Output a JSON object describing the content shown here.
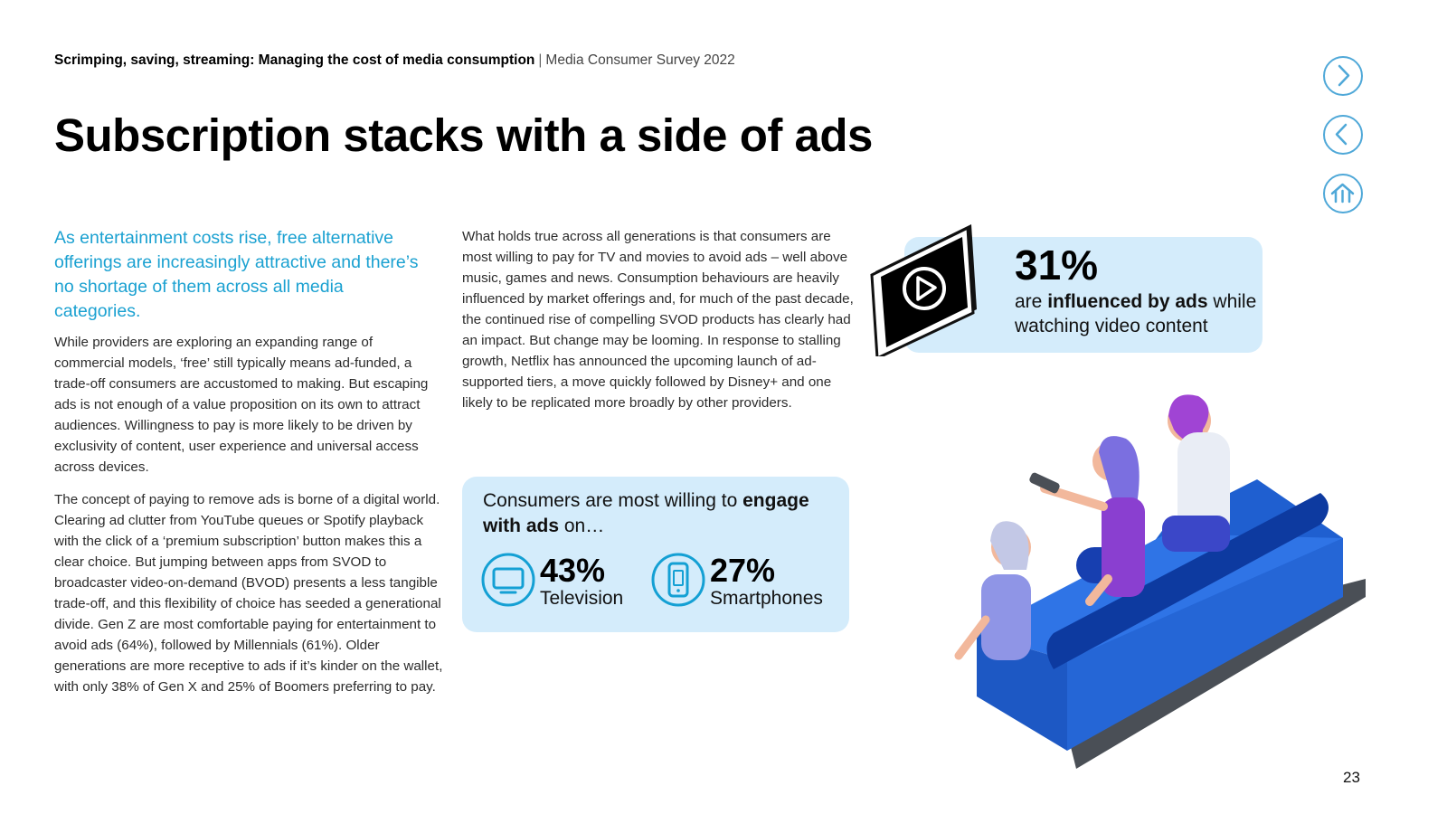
{
  "header": {
    "report_title": "Scrimping, saving, streaming: Managing the cost of media consumption",
    "separator": "|",
    "survey": "Media Consumer Survey 2022"
  },
  "page_title": "Subscription stacks with a side of ads",
  "nav": {
    "next_icon": "chevron-right-icon",
    "prev_icon": "chevron-left-icon",
    "home_icon": "home-icon",
    "accent_color": "#4fa8d8"
  },
  "lead": "As entertainment costs rise, free alternative offerings are increasingly attractive and there’s no shortage of them across all media categories.",
  "paragraphs": [
    "While providers are exploring an expanding range of commercial models, ‘free’ still typically means ad-funded, a trade-off consumers are accustomed to making. But escaping ads is not enough of a value proposition on its own to attract audiences. Willingness to pay is more likely to be driven by exclusivity of content, user experience and universal access across devices.",
    "The concept of paying to remove ads is borne of a digital world. Clearing ad clutter from YouTube queues or Spotify playback with the click of a ‘premium subscription’ button makes this a clear choice. But jumping between apps from SVOD to broadcaster video-on-demand (BVOD) presents a less tangible trade-off, and this flexibility of choice has seeded a generational divide. Gen Z are most comfortable paying for entertainment to avoid ads (64%), followed by Millennials (61%). Older generations are more receptive to ads if it’s kinder on the wallet, with only 38% of Gen X and 25% of Boomers preferring to pay.",
    "What holds true across all generations is that consumers are most willing to pay for TV and movies to avoid ads – well above music, games and news. Consumption behaviours are heavily influenced by market offerings and, for much of the past decade, the continued rise of compelling SVOD products has clearly had an impact. But change may be looming. In response to stalling growth, Netflix has announced the upcoming launch of ad-supported tiers, a move quickly followed by Disney+ and one likely to be replicated more broadly by other providers."
  ],
  "video_callout": {
    "percent": "31%",
    "text_pre": "are ",
    "text_bold": "influenced by ads",
    "text_post": " while watching video content",
    "icon": "tablet-play-icon"
  },
  "engage": {
    "title_pre": "Consumers are most willing to ",
    "title_bold": "engage with ads",
    "title_post": " on…",
    "items": [
      {
        "percent": "43%",
        "label": "Television",
        "icon": "tv-icon"
      },
      {
        "percent": "27%",
        "label": "Smartphones",
        "icon": "smartphone-icon"
      }
    ],
    "box_color": "#d4ecfb",
    "icon_color": "#14a0d4"
  },
  "illustration": "family-on-couch-illustration",
  "page_number": "23"
}
